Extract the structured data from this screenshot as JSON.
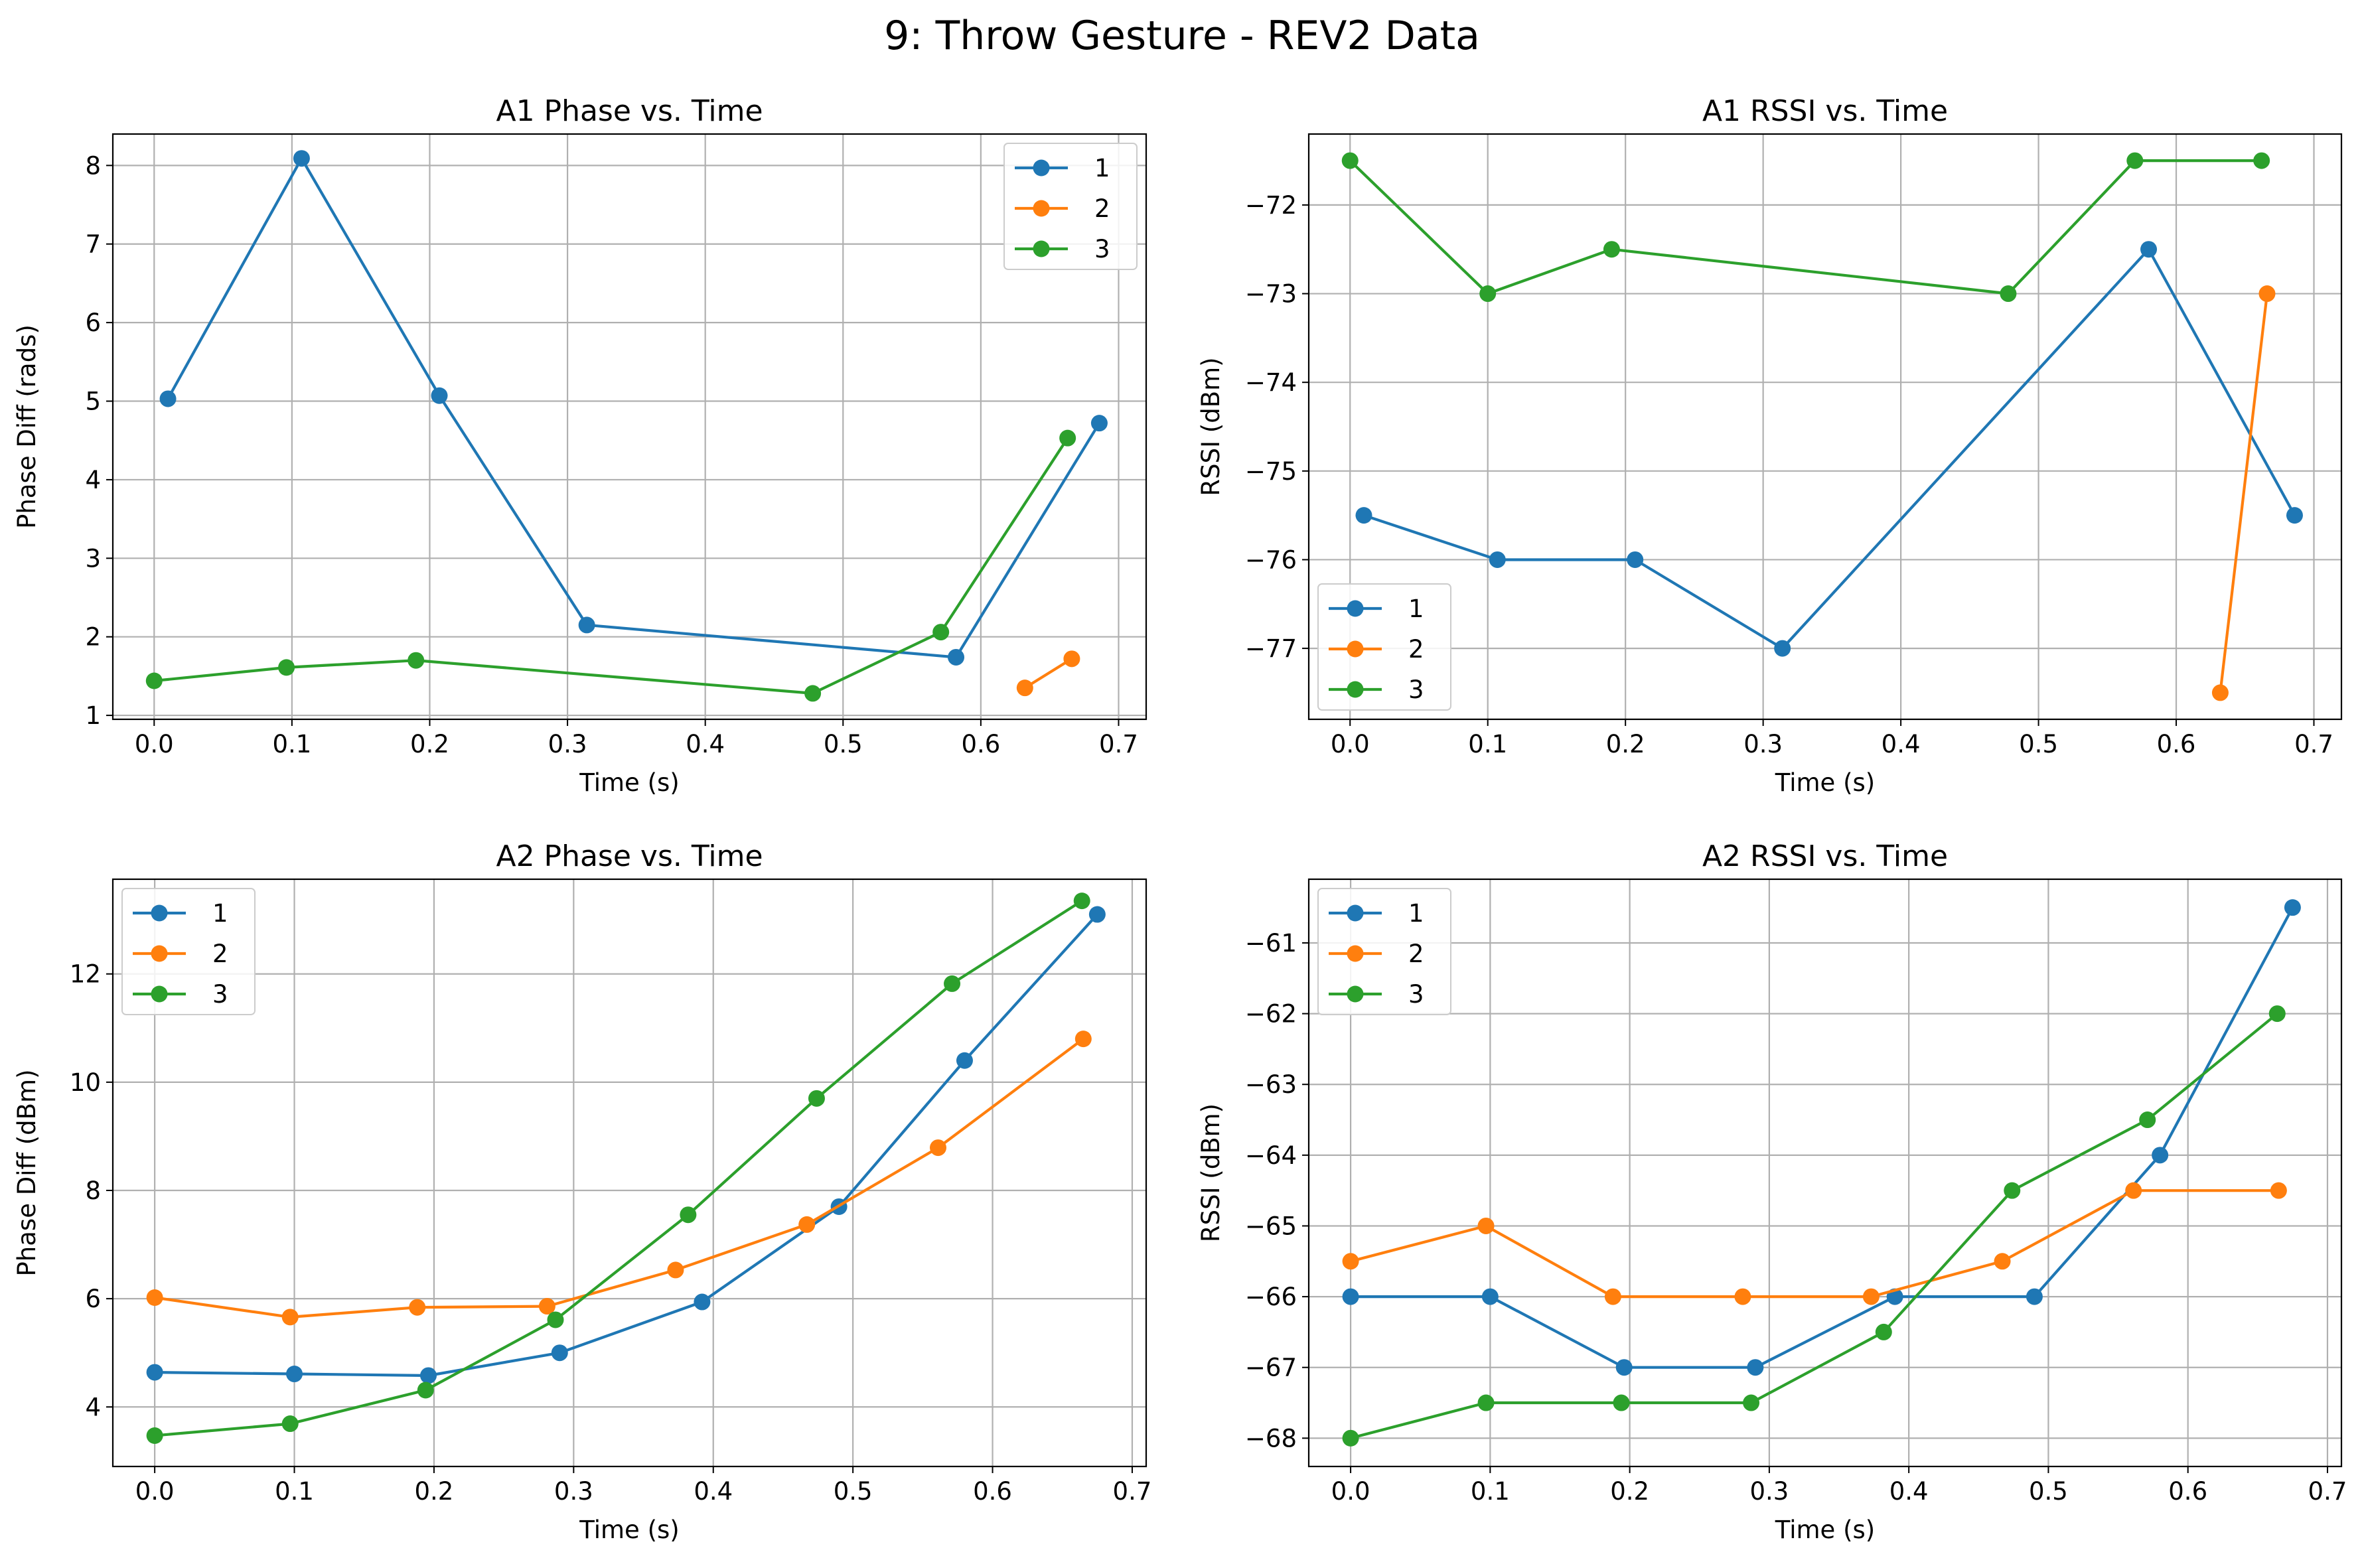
{
  "figure": {
    "suptitle": "9: Throw Gesture - REV2 Data"
  },
  "colors": {
    "1": "#1f77b4",
    "2": "#ff7f0e",
    "3": "#2ca02c",
    "grid": "#b0b0b0",
    "frame": "#000000"
  },
  "chart_data": [
    {
      "id": "a1-phase",
      "type": "line",
      "title": "A1 Phase vs. Time",
      "xlabel": "Time (s)",
      "ylabel": "Phase Diff (rads)",
      "xlim": [
        -0.03,
        0.72
      ],
      "ylim": [
        0.95,
        8.4
      ],
      "xticks": [
        0.0,
        0.1,
        0.2,
        0.3,
        0.4,
        0.5,
        0.6,
        0.7
      ],
      "xtick_labels": [
        "0.0",
        "0.1",
        "0.2",
        "0.3",
        "0.4",
        "0.5",
        "0.6",
        "0.7"
      ],
      "yticks": [
        1,
        2,
        3,
        4,
        5,
        6,
        7,
        8
      ],
      "ytick_labels": [
        "1",
        "2",
        "3",
        "4",
        "5",
        "6",
        "7",
        "8"
      ],
      "grid": true,
      "legend": "upper right",
      "series": [
        {
          "name": "1",
          "color": "#1f77b4",
          "x": [
            0.01,
            0.107,
            0.207,
            0.314,
            0.582,
            0.686
          ],
          "y": [
            5.03,
            8.09,
            5.07,
            2.15,
            1.74,
            4.72
          ]
        },
        {
          "name": "2",
          "color": "#ff7f0e",
          "x": [
            0.632,
            0.666
          ],
          "y": [
            1.35,
            1.72
          ]
        },
        {
          "name": "3",
          "color": "#2ca02c",
          "x": [
            0.0,
            0.096,
            0.19,
            0.478,
            0.571,
            0.663
          ],
          "y": [
            1.44,
            1.61,
            1.7,
            1.28,
            2.06,
            4.53
          ]
        }
      ]
    },
    {
      "id": "a1-rssi",
      "type": "line",
      "title": "A1 RSSI vs. Time",
      "xlabel": "Time (s)",
      "ylabel": "RSSI (dBm)",
      "xlim": [
        -0.03,
        0.72
      ],
      "ylim": [
        -77.8,
        -71.2
      ],
      "xticks": [
        0.0,
        0.1,
        0.2,
        0.3,
        0.4,
        0.5,
        0.6,
        0.7
      ],
      "xtick_labels": [
        "0.0",
        "0.1",
        "0.2",
        "0.3",
        "0.4",
        "0.5",
        "0.6",
        "0.7"
      ],
      "yticks": [
        -77,
        -76,
        -75,
        -74,
        -73,
        -72
      ],
      "ytick_labels": [
        "−77",
        "−76",
        "−75",
        "−74",
        "−73",
        "−72"
      ],
      "grid": true,
      "legend": "lower left",
      "series": [
        {
          "name": "1",
          "color": "#1f77b4",
          "x": [
            0.01,
            0.107,
            0.207,
            0.314,
            0.58,
            0.686
          ],
          "y": [
            -75.5,
            -76.0,
            -76.0,
            -77.0,
            -72.5,
            -75.5
          ]
        },
        {
          "name": "2",
          "color": "#ff7f0e",
          "x": [
            0.632,
            0.666
          ],
          "y": [
            -77.5,
            -73.0
          ]
        },
        {
          "name": "3",
          "color": "#2ca02c",
          "x": [
            0.0,
            0.1,
            0.19,
            0.478,
            0.57,
            0.662
          ],
          "y": [
            -71.5,
            -73.0,
            -72.5,
            -73.0,
            -71.5,
            -71.5
          ]
        }
      ]
    },
    {
      "id": "a2-phase",
      "type": "line",
      "title": "A2 Phase vs. Time",
      "xlabel": "Time (s)",
      "ylabel": "Phase Diff (dBm)",
      "xlim": [
        -0.03,
        0.71
      ],
      "ylim": [
        2.9,
        13.75
      ],
      "xticks": [
        0.0,
        0.1,
        0.2,
        0.3,
        0.4,
        0.5,
        0.6,
        0.7
      ],
      "xtick_labels": [
        "0.0",
        "0.1",
        "0.2",
        "0.3",
        "0.4",
        "0.5",
        "0.6",
        "0.7"
      ],
      "yticks": [
        4,
        6,
        8,
        10,
        12
      ],
      "ytick_labels": [
        "4",
        "6",
        "8",
        "10",
        "12"
      ],
      "grid": true,
      "legend": "upper left",
      "series": [
        {
          "name": "1",
          "color": "#1f77b4",
          "x": [
            0.0,
            0.1,
            0.196,
            0.29,
            0.392,
            0.49,
            0.58,
            0.675
          ],
          "y": [
            4.64,
            4.61,
            4.58,
            5.0,
            5.94,
            7.7,
            10.4,
            13.1
          ]
        },
        {
          "name": "2",
          "color": "#ff7f0e",
          "x": [
            0.0,
            0.097,
            0.188,
            0.281,
            0.373,
            0.467,
            0.561,
            0.665
          ],
          "y": [
            6.02,
            5.66,
            5.84,
            5.86,
            6.53,
            7.37,
            8.79,
            10.8
          ]
        },
        {
          "name": "3",
          "color": "#2ca02c",
          "x": [
            0.0,
            0.097,
            0.194,
            0.287,
            0.382,
            0.474,
            0.571,
            0.664
          ],
          "y": [
            3.47,
            3.69,
            4.31,
            5.61,
            7.55,
            9.7,
            11.82,
            13.35
          ]
        }
      ]
    },
    {
      "id": "a2-rssi",
      "type": "line",
      "title": "A2 RSSI vs. Time",
      "xlabel": "Time (s)",
      "ylabel": "RSSI (dBm)",
      "xlim": [
        -0.03,
        0.71
      ],
      "ylim": [
        -68.4,
        -60.1
      ],
      "xticks": [
        0.0,
        0.1,
        0.2,
        0.3,
        0.4,
        0.5,
        0.6,
        0.7
      ],
      "xtick_labels": [
        "0.0",
        "0.1",
        "0.2",
        "0.3",
        "0.4",
        "0.5",
        "0.6",
        "0.7"
      ],
      "yticks": [
        -68,
        -67,
        -66,
        -65,
        -64,
        -63,
        -62,
        -61
      ],
      "ytick_labels": [
        "−68",
        "−67",
        "−66",
        "−65",
        "−64",
        "−63",
        "−62",
        "−61"
      ],
      "grid": true,
      "legend": "upper left",
      "series": [
        {
          "name": "1",
          "color": "#1f77b4",
          "x": [
            0.0,
            0.1,
            0.196,
            0.29,
            0.39,
            0.49,
            0.58,
            0.675
          ],
          "y": [
            -66.0,
            -66.0,
            -67.0,
            -67.0,
            -66.0,
            -66.0,
            -64.0,
            -60.5
          ]
        },
        {
          "name": "2",
          "color": "#ff7f0e",
          "x": [
            0.0,
            0.097,
            0.188,
            0.281,
            0.373,
            0.467,
            0.561,
            0.665
          ],
          "y": [
            -65.5,
            -65.0,
            -66.0,
            -66.0,
            -66.0,
            -65.5,
            -64.5,
            -64.5
          ]
        },
        {
          "name": "3",
          "color": "#2ca02c",
          "x": [
            0.0,
            0.097,
            0.194,
            0.287,
            0.382,
            0.474,
            0.571,
            0.664
          ],
          "y": [
            -68.0,
            -67.5,
            -67.5,
            -67.5,
            -66.5,
            -64.5,
            -63.5,
            -62.0
          ]
        }
      ]
    }
  ]
}
